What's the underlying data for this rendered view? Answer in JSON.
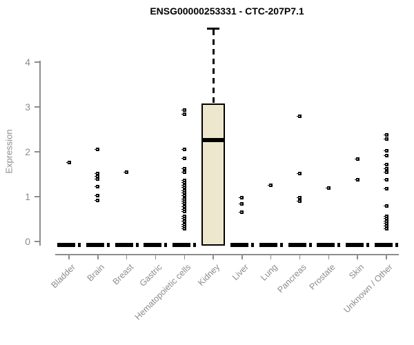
{
  "title": "ENSG00000253331 - CTC-207P7.1",
  "colors": {
    "background": "#ffffff",
    "axis": "#8c8c8c",
    "tick_text": "#8c8c8c",
    "data": "#000000",
    "box_fill": "#ede8cd"
  },
  "chart_data": {
    "type": "boxplot",
    "title": "ENSG00000253331 - CTC-207P7.1",
    "xlabel": "",
    "ylabel": "Expression",
    "ylim": [
      0,
      4.8
    ],
    "yticks": [
      0,
      1,
      2,
      3,
      4
    ],
    "grid": false,
    "legend": false,
    "categories": [
      "Bladder",
      "Brain",
      "Breast",
      "Gastric",
      "Hematopoietic cells",
      "Kidney",
      "Liver",
      "Lung",
      "Pancreas",
      "Prostate",
      "Skin",
      "Unknown / Other"
    ],
    "series": [
      {
        "category": "Bladder",
        "box": {
          "q1": 0,
          "median": 0,
          "q3": 0,
          "whisker_low": 0,
          "whisker_high": 0
        },
        "points": [
          1.76
        ]
      },
      {
        "category": "Brain",
        "box": {
          "q1": 0,
          "median": 0,
          "q3": 0,
          "whisker_low": 0,
          "whisker_high": 0
        },
        "points": [
          2.05,
          1.52,
          1.46,
          1.4,
          1.23,
          1.02,
          0.92
        ]
      },
      {
        "category": "Breast",
        "box": {
          "q1": 0,
          "median": 0,
          "q3": 0,
          "whisker_low": 0,
          "whisker_high": 0
        },
        "points": [
          1.55
        ]
      },
      {
        "category": "Gastric",
        "box": {
          "q1": 0,
          "median": 0,
          "q3": 0,
          "whisker_low": 0,
          "whisker_high": 0
        },
        "points": []
      },
      {
        "category": "Hematopoietic cells",
        "box": {
          "q1": 0,
          "median": 0,
          "q3": 0,
          "whisker_low": 0,
          "whisker_high": 0
        },
        "points": [
          2.93,
          2.84,
          2.05,
          1.85,
          1.62,
          1.55,
          1.36,
          1.31,
          1.26,
          1.21,
          1.13,
          1.08,
          1.03,
          0.95,
          0.9,
          0.85,
          0.77,
          0.72,
          0.67,
          0.56,
          0.51,
          0.46,
          0.38,
          0.33,
          0.28
        ]
      },
      {
        "category": "Kidney",
        "box": {
          "q1": 0,
          "median": 2.26,
          "q3": 3.08,
          "whisker_low": 0,
          "whisker_high": 4.75
        },
        "points": []
      },
      {
        "category": "Liver",
        "box": {
          "q1": 0,
          "median": 0,
          "q3": 0,
          "whisker_low": 0,
          "whisker_high": 0
        },
        "points": [
          0.98,
          0.84,
          0.65
        ]
      },
      {
        "category": "Lung",
        "box": {
          "q1": 0,
          "median": 0,
          "q3": 0,
          "whisker_low": 0,
          "whisker_high": 0
        },
        "points": [
          1.26
        ]
      },
      {
        "category": "Pancreas",
        "box": {
          "q1": 0,
          "median": 0,
          "q3": 0,
          "whisker_low": 0,
          "whisker_high": 0
        },
        "points": [
          2.79,
          1.52,
          0.97,
          0.9
        ]
      },
      {
        "category": "Prostate",
        "box": {
          "q1": 0,
          "median": 0,
          "q3": 0,
          "whisker_low": 0,
          "whisker_high": 0
        },
        "points": [
          1.2
        ]
      },
      {
        "category": "Skin",
        "box": {
          "q1": 0,
          "median": 0,
          "q3": 0,
          "whisker_low": 0,
          "whisker_high": 0
        },
        "points": [
          1.84,
          1.38
        ]
      },
      {
        "category": "Unknown / Other",
        "box": {
          "q1": 0,
          "median": 0,
          "q3": 0,
          "whisker_low": 0,
          "whisker_high": 0
        },
        "points": [
          2.38,
          2.28,
          2.02,
          1.92,
          1.72,
          1.63,
          1.54,
          1.38,
          1.18,
          0.8,
          0.56,
          0.51,
          0.46,
          0.41,
          0.35,
          0.28
        ]
      }
    ]
  }
}
